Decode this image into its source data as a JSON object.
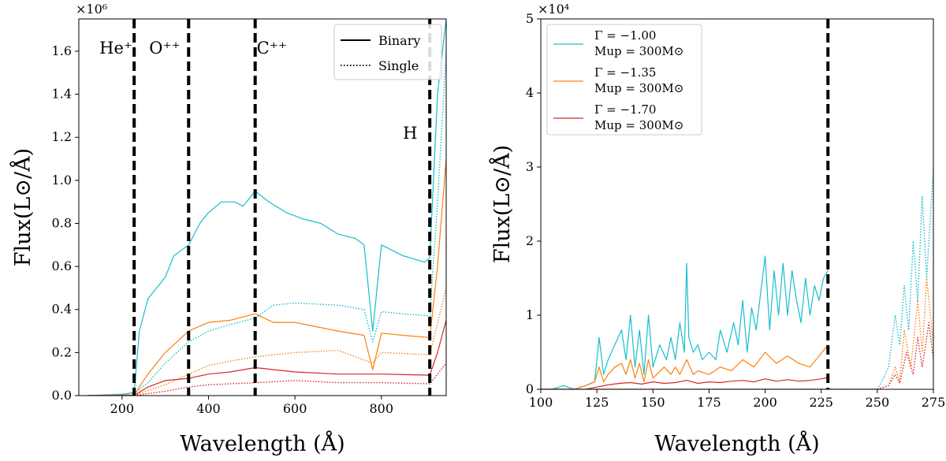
{
  "chart_data": [
    {
      "type": "line",
      "xlabel": "Wavelength (Å)",
      "ylabel": "Flux(L⊙/Å)",
      "y_multiplier": "×10⁶",
      "xlim": [
        100,
        950
      ],
      "ylim": [
        0,
        1750000
      ],
      "xticks": [
        200,
        400,
        600,
        800
      ],
      "xtick_labels": [
        "200",
        "400",
        "600",
        "800"
      ],
      "yticks": [
        0,
        200000,
        400000,
        600000,
        800000,
        1000000,
        1200000,
        1400000,
        1600000
      ],
      "ytick_labels": [
        "0.0",
        "0.2",
        "0.4",
        "0.6",
        "0.8",
        "1.0",
        "1.2",
        "1.4",
        "1.6"
      ],
      "vlines": [
        {
          "x": 228,
          "label": "He⁺"
        },
        {
          "x": 354,
          "label": "O⁺⁺"
        },
        {
          "x": 508,
          "label": "C⁺⁺"
        },
        {
          "x": 912,
          "label": "H"
        }
      ],
      "legend": {
        "position": "top-right",
        "entries": [
          {
            "label": "Binary",
            "style": "solid"
          },
          {
            "label": "Single",
            "style": "dotted"
          }
        ]
      },
      "series": [
        {
          "name": "Γ = −1.00 binary",
          "color": "#17becf",
          "style": "solid",
          "x": [
            120,
            200,
            228,
            240,
            260,
            280,
            300,
            320,
            354,
            380,
            400,
            430,
            460,
            480,
            508,
            540,
            580,
            620,
            660,
            700,
            740,
            760,
            780,
            800,
            850,
            900,
            912,
            930,
            950
          ],
          "y": [
            0,
            5000,
            15000,
            300000,
            450000,
            500000,
            550000,
            650000,
            700000,
            800000,
            850000,
            900000,
            900000,
            880000,
            950000,
            900000,
            850000,
            820000,
            800000,
            750000,
            730000,
            700000,
            300000,
            700000,
            650000,
            620000,
            640000,
            1400000,
            1750000
          ]
        },
        {
          "name": "Γ = −1.00 single",
          "color": "#17becf",
          "style": "dotted",
          "x": [
            120,
            228,
            260,
            300,
            354,
            400,
            450,
            508,
            550,
            600,
            700,
            760,
            780,
            800,
            850,
            912,
            930,
            950
          ],
          "y": [
            0,
            10000,
            60000,
            150000,
            250000,
            300000,
            330000,
            360000,
            420000,
            430000,
            420000,
            400000,
            250000,
            390000,
            380000,
            370000,
            900000,
            1600000
          ]
        },
        {
          "name": "Γ = −1.35 binary",
          "color": "#ff7f0e",
          "style": "solid",
          "x": [
            120,
            228,
            260,
            300,
            354,
            400,
            450,
            508,
            550,
            600,
            650,
            700,
            760,
            780,
            800,
            850,
            912,
            930,
            950
          ],
          "y": [
            0,
            3000,
            100000,
            200000,
            300000,
            340000,
            350000,
            380000,
            340000,
            340000,
            320000,
            300000,
            280000,
            120000,
            290000,
            280000,
            270000,
            600000,
            1100000
          ]
        },
        {
          "name": "Γ = −1.35 single",
          "color": "#ff7f0e",
          "style": "dotted",
          "x": [
            120,
            228,
            300,
            354,
            400,
            450,
            508,
            600,
            700,
            780,
            800,
            912,
            950
          ],
          "y": [
            0,
            2000,
            50000,
            100000,
            140000,
            160000,
            180000,
            200000,
            210000,
            150000,
            200000,
            190000,
            500000
          ]
        },
        {
          "name": "Γ = −1.70 binary",
          "color": "#d62728",
          "style": "solid",
          "x": [
            120,
            228,
            260,
            300,
            354,
            400,
            450,
            508,
            600,
            700,
            800,
            912,
            930,
            950
          ],
          "y": [
            0,
            1000,
            40000,
            70000,
            80000,
            100000,
            110000,
            130000,
            110000,
            100000,
            100000,
            95000,
            200000,
            350000
          ]
        },
        {
          "name": "Γ = −1.70 single",
          "color": "#d62728",
          "style": "dotted",
          "x": [
            120,
            228,
            300,
            354,
            400,
            508,
            600,
            700,
            800,
            912,
            950
          ],
          "y": [
            0,
            500,
            20000,
            40000,
            50000,
            60000,
            70000,
            60000,
            60000,
            55000,
            150000
          ]
        }
      ]
    },
    {
      "type": "line",
      "xlabel": "Wavelength (Å)",
      "ylabel": "Flux(L⊙/Å)",
      "y_multiplier": "×10⁴",
      "xlim": [
        100,
        275
      ],
      "ylim": [
        0,
        50000
      ],
      "xticks": [
        100,
        125,
        150,
        175,
        200,
        225,
        250,
        275
      ],
      "xtick_labels": [
        "100",
        "125",
        "150",
        "175",
        "200",
        "225",
        "250",
        "275"
      ],
      "yticks": [
        0,
        10000,
        20000,
        30000,
        40000,
        50000
      ],
      "ytick_labels": [
        "0",
        "1",
        "2",
        "3",
        "4",
        "5"
      ],
      "vlines": [
        {
          "x": 228,
          "label": ""
        }
      ],
      "legend": {
        "position": "top-left",
        "entries": [
          {
            "label": "Γ = −1.00",
            "sublabel": "Mup = 300M⊙",
            "color": "#17becf"
          },
          {
            "label": "Γ = −1.35",
            "sublabel": "Mup = 300M⊙",
            "color": "#ff7f0e"
          },
          {
            "label": "Γ = −1.70",
            "sublabel": "Mup = 300M⊙",
            "color": "#d62728"
          }
        ]
      },
      "series": [
        {
          "name": "Γ = −1.00 binary",
          "color": "#17becf",
          "style": "solid",
          "x": [
            100,
            105,
            110,
            115,
            120,
            124,
            126,
            128,
            130,
            133,
            136,
            138,
            140,
            142,
            144,
            146,
            148,
            150,
            153,
            156,
            158,
            160,
            162,
            164,
            165,
            166,
            168,
            170,
            172,
            175,
            178,
            180,
            183,
            186,
            188,
            190,
            192,
            194,
            196,
            198,
            200,
            202,
            204,
            206,
            208,
            210,
            212,
            214,
            216,
            218,
            220,
            222,
            224,
            226,
            228
          ],
          "y": [
            0,
            0,
            500,
            0,
            500,
            1000,
            7000,
            2000,
            4000,
            6000,
            8000,
            4000,
            10000,
            3000,
            8000,
            2000,
            10000,
            3000,
            6000,
            4000,
            7000,
            4000,
            9000,
            5000,
            17000,
            7000,
            5000,
            6000,
            4000,
            5000,
            4000,
            8000,
            5000,
            9000,
            6000,
            12000,
            5000,
            11000,
            8000,
            13000,
            18000,
            8000,
            16000,
            10000,
            17000,
            10000,
            16000,
            12000,
            9000,
            15000,
            10000,
            14000,
            12000,
            15000,
            16000
          ]
        },
        {
          "name": "Γ = −1.00 single",
          "color": "#17becf",
          "style": "dotted",
          "x": [
            100,
            228,
            240,
            245,
            250,
            252,
            255,
            258,
            260,
            262,
            264,
            266,
            268,
            270,
            272,
            275
          ],
          "y": [
            0,
            0,
            0,
            0,
            0,
            1000,
            3000,
            10000,
            6000,
            14000,
            8000,
            20000,
            12000,
            26000,
            15000,
            30000
          ]
        },
        {
          "name": "Γ = −1.35 binary",
          "color": "#ff7f0e",
          "style": "solid",
          "x": [
            100,
            115,
            120,
            124,
            126,
            128,
            130,
            133,
            136,
            138,
            140,
            142,
            144,
            146,
            148,
            150,
            155,
            158,
            160,
            162,
            165,
            168,
            170,
            175,
            180,
            185,
            190,
            195,
            200,
            205,
            210,
            215,
            220,
            224,
            228
          ],
          "y": [
            0,
            0,
            500,
            1000,
            3000,
            1000,
            2000,
            3000,
            3500,
            2000,
            4000,
            1500,
            3500,
            1000,
            4000,
            1500,
            3000,
            2000,
            3000,
            2000,
            4000,
            2000,
            2500,
            2000,
            3000,
            2500,
            4000,
            3000,
            5000,
            3500,
            4500,
            3500,
            3000,
            4500,
            6000
          ]
        },
        {
          "name": "Γ = −1.35 single",
          "color": "#ff7f0e",
          "style": "dotted",
          "x": [
            100,
            228,
            240,
            250,
            255,
            258,
            260,
            262,
            265,
            268,
            270,
            272,
            275
          ],
          "y": [
            0,
            0,
            0,
            0,
            500,
            3000,
            1000,
            8000,
            3000,
            12000,
            5000,
            15000,
            6000
          ]
        },
        {
          "name": "Γ = −1.70 binary",
          "color": "#d62728",
          "style": "solid",
          "x": [
            100,
            120,
            125,
            130,
            135,
            140,
            145,
            150,
            155,
            160,
            165,
            170,
            175,
            180,
            185,
            190,
            195,
            200,
            205,
            210,
            215,
            220,
            225,
            228
          ],
          "y": [
            0,
            0,
            300,
            600,
            800,
            900,
            700,
            1000,
            800,
            900,
            1200,
            800,
            1000,
            900,
            1100,
            1200,
            1000,
            1400,
            1100,
            1300,
            1100,
            1200,
            1400,
            1600
          ]
        },
        {
          "name": "Γ = −1.70 single",
          "color": "#d62728",
          "style": "dotted",
          "x": [
            100,
            228,
            245,
            250,
            255,
            258,
            260,
            263,
            266,
            268,
            270,
            273,
            275
          ],
          "y": [
            0,
            0,
            0,
            0,
            500,
            2000,
            800,
            5000,
            2000,
            7000,
            3000,
            9000,
            4000
          ]
        }
      ]
    }
  ]
}
